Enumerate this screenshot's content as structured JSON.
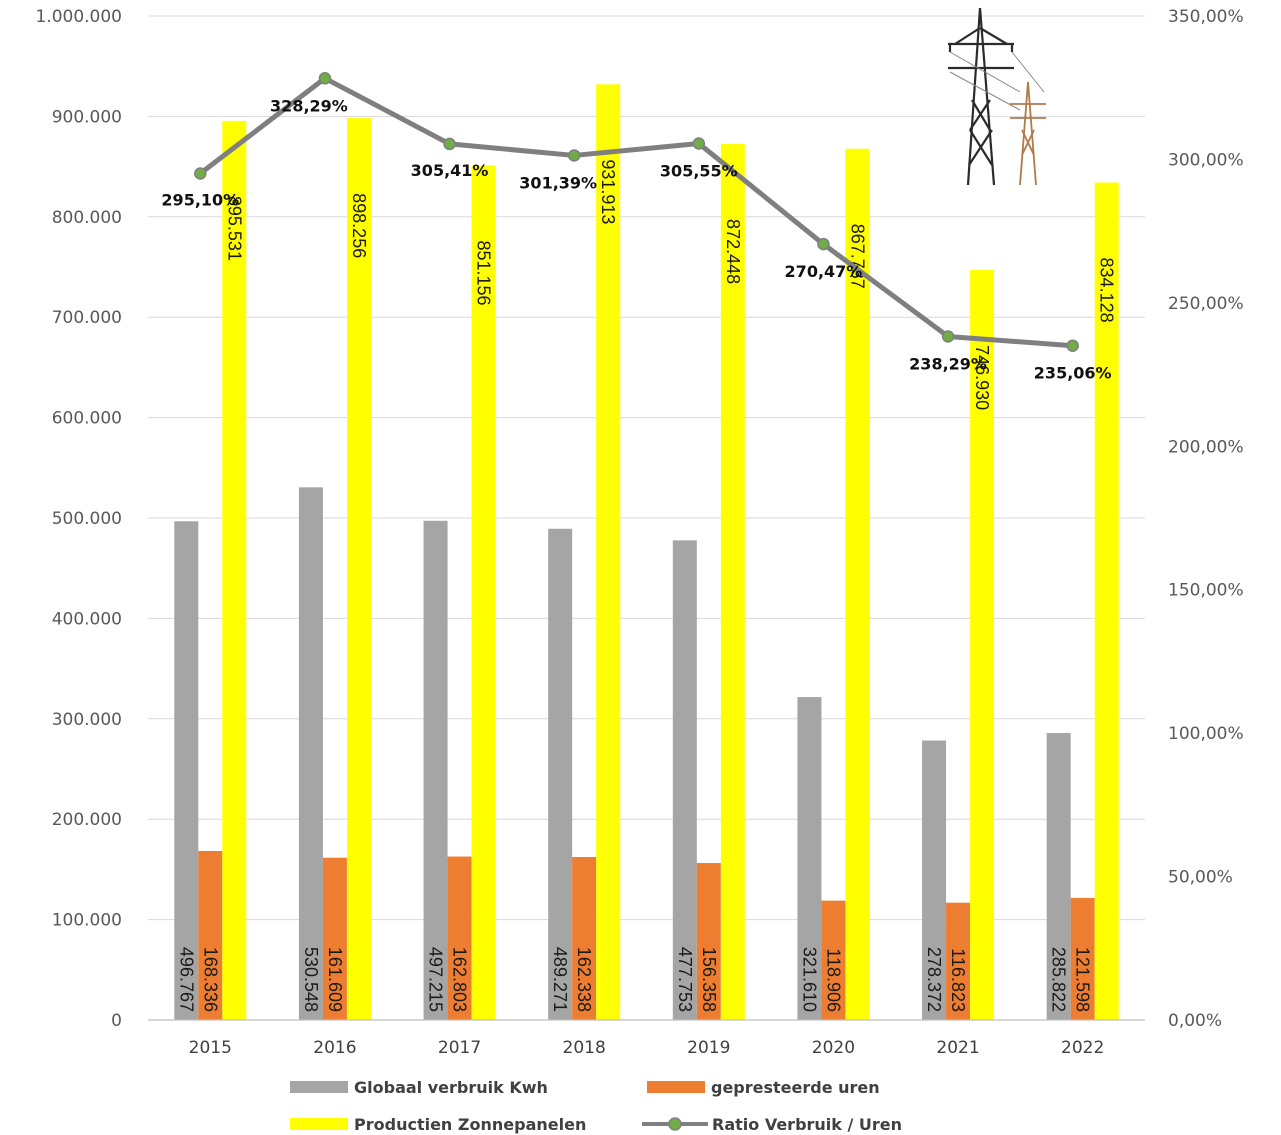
{
  "chart_data": {
    "type": "bar",
    "categories": [
      "2015",
      "2016",
      "2017",
      "2018",
      "2019",
      "2020",
      "2021",
      "2022"
    ],
    "series": [
      {
        "name": "Globaal verbruik Kwh",
        "type": "bar",
        "axis": "left",
        "color": "#a5a5a5",
        "values": [
          496767,
          530548,
          497215,
          489271,
          477753,
          321610,
          278372,
          285822
        ],
        "labels": [
          "496.767",
          "530.548",
          "497.215",
          "489.271",
          "477.753",
          "321.610",
          "278.372",
          "285.822"
        ]
      },
      {
        "name": "gepresteerde uren",
        "type": "bar",
        "axis": "left",
        "color": "#ed7d31",
        "values": [
          168336,
          161609,
          162803,
          162338,
          156358,
          118906,
          116823,
          121598
        ],
        "labels": [
          "168.336",
          "161.609",
          "162.803",
          "162.338",
          "156.358",
          "118.906",
          "116.823",
          "121.598"
        ]
      },
      {
        "name": "Productien Zonnepanelen",
        "type": "bar",
        "axis": "left",
        "color": "#ffff00",
        "values": [
          895531,
          898256,
          851156,
          931913,
          872448,
          867787,
          746930,
          834128
        ],
        "labels": [
          "895.531",
          "898.256",
          "851.156",
          "931.913",
          "872.448",
          "867.787",
          "746.930",
          "834.128"
        ]
      },
      {
        "name": "Ratio Verbruik / Uren",
        "type": "line",
        "axis": "right",
        "color": "#7f7f7f",
        "marker_color": "#70ad47",
        "values": [
          295.1,
          328.29,
          305.41,
          301.39,
          305.55,
          270.47,
          238.29,
          235.06
        ],
        "labels": [
          "295,10%",
          "328,29%",
          "305,41%",
          "301,39%",
          "305,55%",
          "270,47%",
          "238,29%",
          "235,06%"
        ]
      }
    ],
    "y_left": {
      "ylim": [
        0,
        1000000
      ],
      "ticks": [
        "0",
        "100.000",
        "200.000",
        "300.000",
        "400.000",
        "500.000",
        "600.000",
        "700.000",
        "800.000",
        "900.000",
        "1.000.000"
      ]
    },
    "y_right": {
      "ylim": [
        0,
        350
      ],
      "ticks": [
        "0,00%",
        "50,00%",
        "100,00%",
        "150,00%",
        "200,00%",
        "250,00%",
        "300,00%",
        "350,00%"
      ]
    },
    "grid": true,
    "legend": "bottom",
    "icon": "electricity-pylon-icon"
  }
}
